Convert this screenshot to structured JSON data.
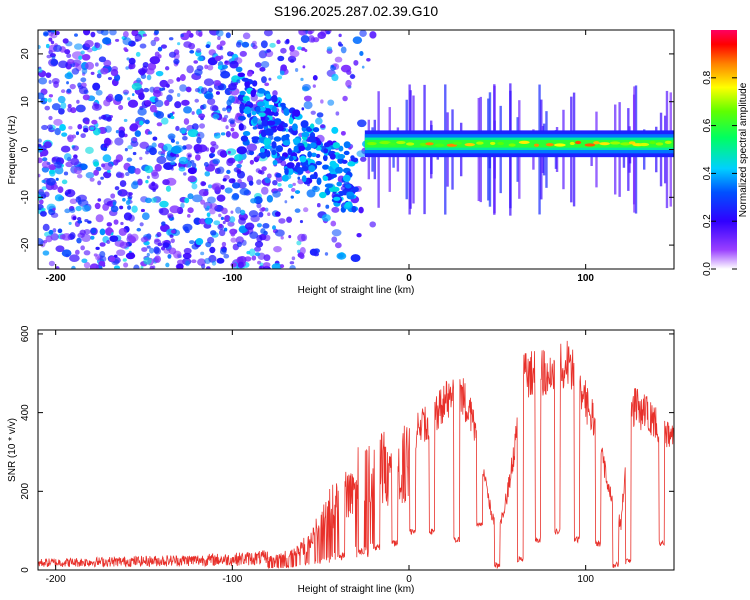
{
  "title": "S196.2025.287.02.39.G10",
  "chart_data": [
    {
      "type": "heatmap",
      "name": "spectrogram",
      "xlabel": "Height of straight line (km)",
      "ylabel": "Frequency (Hz)",
      "xlim": [
        -210,
        150
      ],
      "ylim": [
        -25,
        25
      ],
      "xticks": [
        -200,
        -100,
        0,
        100
      ],
      "yticks": [
        -20,
        -10,
        0,
        10,
        20
      ],
      "colorbar": {
        "label": "Normalized spectral amplitude",
        "range": [
          0,
          1
        ],
        "ticks": [
          "0.0",
          "0.2",
          "0.4",
          "0.6",
          "0.8"
        ]
      },
      "dominant_ridge": {
        "x_range": [
          -25,
          150
        ],
        "frequency_hz": 1.2,
        "peak_amplitude": 0.9
      },
      "scatter_region": {
        "x_range": [
          -210,
          -20
        ],
        "frequency_range": [
          -25,
          25
        ],
        "amplitude_range": [
          0.1,
          0.45
        ]
      }
    },
    {
      "type": "line",
      "name": "snr",
      "xlabel": "Height of straight line (km)",
      "ylabel": "SNR (10 * v/v)",
      "xlim": [
        -210,
        150
      ],
      "ylim": [
        0,
        610
      ],
      "xticks": [
        -200,
        -100,
        0,
        100
      ],
      "yticks": [
        0,
        200,
        400,
        600
      ],
      "color": "#e8302a",
      "envelope": {
        "x": [
          -210,
          -150,
          -100,
          -80,
          -70,
          -60,
          -50,
          -40,
          -30,
          -20,
          -10,
          0,
          10,
          20,
          25,
          30,
          35,
          40,
          45,
          50,
          55,
          60,
          63,
          70,
          80,
          85,
          90,
          95,
          100,
          105,
          110,
          115,
          120,
          125,
          130,
          135,
          140,
          145,
          150
        ],
        "y": [
          20,
          25,
          30,
          35,
          50,
          80,
          160,
          250,
          310,
          340,
          360,
          380,
          420,
          480,
          510,
          500,
          450,
          350,
          200,
          100,
          200,
          350,
          550,
          560,
          560,
          580,
          590,
          570,
          480,
          420,
          300,
          200,
          130,
          470,
          460,
          440,
          420,
          400,
          360
        ]
      },
      "dropouts": [
        {
          "x": -38,
          "depth": 30
        },
        {
          "x": -27,
          "depth": 40
        },
        {
          "x": -18,
          "depth": 50
        },
        {
          "x": -8,
          "depth": 60
        },
        {
          "x": 2,
          "depth": 90
        },
        {
          "x": 13,
          "depth": 90
        },
        {
          "x": 27,
          "depth": 70
        },
        {
          "x": 40,
          "depth": 110
        },
        {
          "x": 50,
          "depth": 5
        },
        {
          "x": 63,
          "depth": 20
        },
        {
          "x": 73,
          "depth": 70
        },
        {
          "x": 84,
          "depth": 90
        },
        {
          "x": 95,
          "depth": 70
        },
        {
          "x": 107,
          "depth": 60
        },
        {
          "x": 117,
          "depth": 5
        },
        {
          "x": 124,
          "depth": 15
        },
        {
          "x": 143,
          "depth": 60
        }
      ]
    }
  ]
}
